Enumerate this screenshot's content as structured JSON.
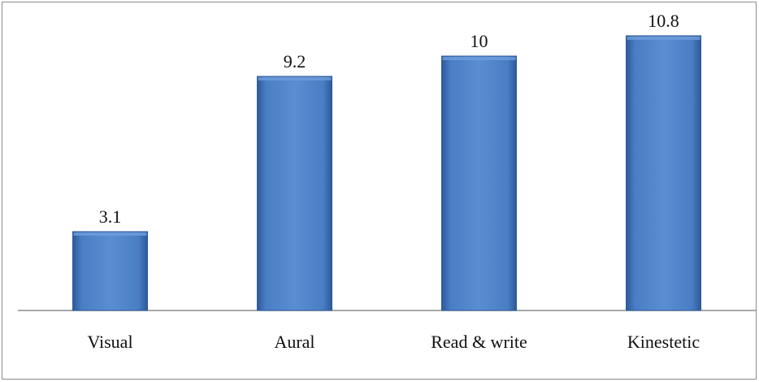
{
  "chart_data": {
    "type": "bar",
    "categories": [
      "Visual",
      "Aural",
      "Read & write",
      "Kinestetic"
    ],
    "values": [
      3.1,
      9.2,
      10,
      10.8
    ],
    "data_labels": [
      "3.1",
      "9.2",
      "10",
      "10.8"
    ],
    "title": "",
    "xlabel": "",
    "ylabel": "",
    "ylim": [
      0,
      12
    ],
    "grid": false,
    "legend": "none",
    "colors": {
      "bar": "#4a7ec4",
      "bar_dark": "#2d5a9a",
      "axis": "#8c8c8c"
    }
  }
}
